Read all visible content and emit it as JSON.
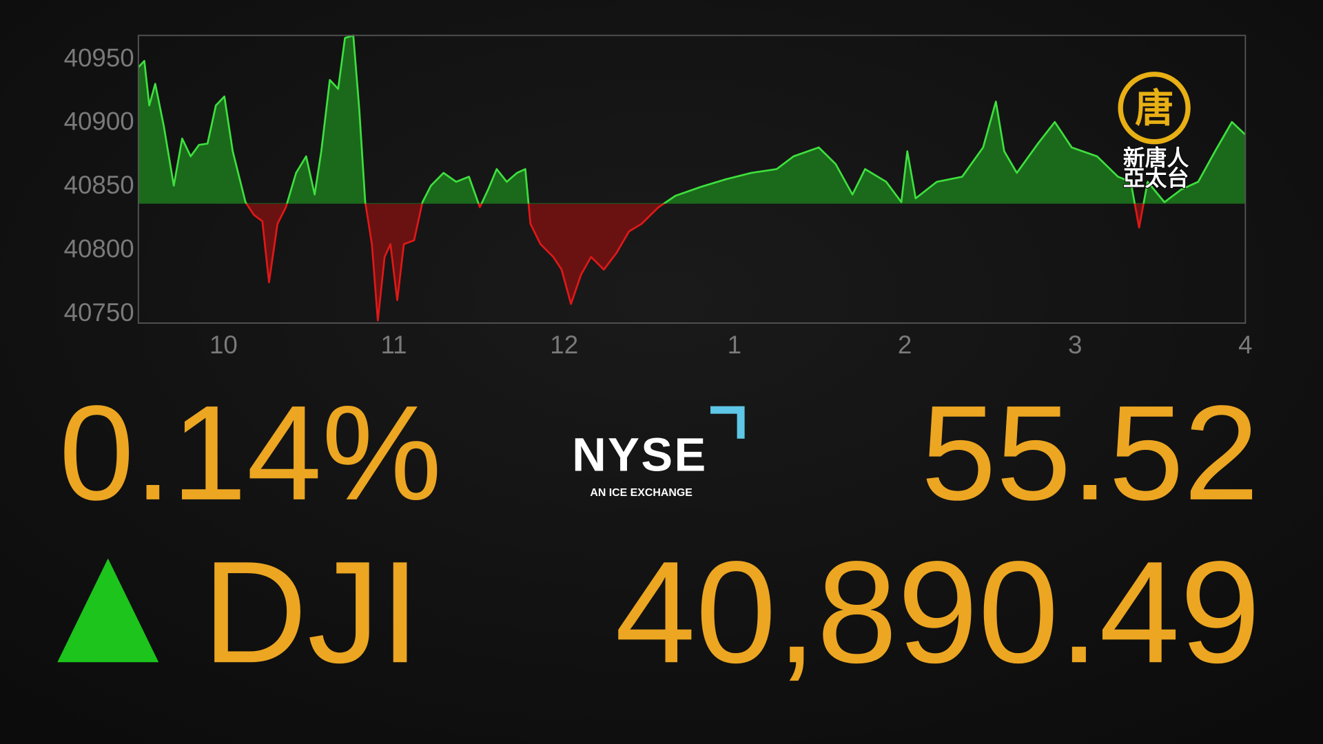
{
  "chart_data": {
    "type": "area",
    "x": [
      9.5,
      9.535,
      9.564,
      9.599,
      9.649,
      9.708,
      9.757,
      9.807,
      9.856,
      9.906,
      9.955,
      10.005,
      10.054,
      10.129,
      10.178,
      10.228,
      10.267,
      10.317,
      10.366,
      10.426,
      10.485,
      10.535,
      10.574,
      10.624,
      10.673,
      10.713,
      10.762,
      10.797,
      10.832,
      10.871,
      10.906,
      10.946,
      10.98,
      11.02,
      11.059,
      11.119,
      11.168,
      11.218,
      11.292,
      11.366,
      11.441,
      11.505,
      11.554,
      11.604,
      11.663,
      11.723,
      11.772,
      11.802,
      11.861,
      11.936,
      11.985,
      12.04,
      12.099,
      12.158,
      12.233,
      12.307,
      12.381,
      12.455,
      12.554,
      12.653,
      12.802,
      12.95,
      13.099,
      13.248,
      13.347,
      13.495,
      13.594,
      13.693,
      13.767,
      13.891,
      13.98,
      14.015,
      14.064,
      14.188,
      14.337,
      14.46,
      14.535,
      14.584,
      14.658,
      14.782,
      14.881,
      14.98,
      15.129,
      15.252,
      15.327,
      15.376,
      15.426,
      15.525,
      15.624,
      15.723,
      15.822,
      15.921,
      16.0
    ],
    "values": [
      40942,
      40947,
      40912,
      40929,
      40896,
      40849,
      40886,
      40872,
      40881,
      40882,
      40912,
      40919,
      40876,
      40836,
      40826,
      40821,
      40773,
      40819,
      40832,
      40859,
      40872,
      40842,
      40876,
      40932,
      40925,
      40965,
      40967,
      40909,
      40836,
      40803,
      40743,
      40793,
      40803,
      40759,
      40803,
      40806,
      40836,
      40849,
      40859,
      40852,
      40856,
      40832,
      40846,
      40862,
      40852,
      40859,
      40862,
      40819,
      40803,
      40793,
      40783,
      40756,
      40779,
      40793,
      40783,
      40796,
      40813,
      40819,
      40832,
      40841,
      40848,
      40854,
      40859,
      40862,
      40872,
      40879,
      40866,
      40842,
      40862,
      40852,
      40836,
      40876,
      40839,
      40852,
      40856,
      40879,
      40915,
      40876,
      40859,
      40882,
      40899,
      40879,
      40872,
      40856,
      40852,
      40816,
      40852,
      40836,
      40846,
      40852,
      40876,
      40899,
      40889
    ],
    "baseline": 40835,
    "up_color": "#3ee03e",
    "down_color": "#e01818",
    "up_fill": "#1b6a1b",
    "down_fill": "#6a1212",
    "xlim": [
      9.5,
      16
    ],
    "ylim": [
      40741,
      40967
    ],
    "xticks": [
      10,
      11,
      12,
      {
        "value": 13,
        "label": "1"
      },
      {
        "value": 14,
        "label": "2"
      },
      {
        "value": 15,
        "label": "3"
      },
      {
        "value": 16,
        "label": "4"
      }
    ],
    "yticks": [
      40750,
      40800,
      40850,
      40900,
      40950
    ]
  },
  "quote": {
    "change_percent": "0.14%",
    "change": "55.52",
    "symbol": "DJI",
    "price": "40,890.49"
  },
  "logos": {
    "exchange": "NYSE",
    "exchange_tagline": "AN ICE EXCHANGE",
    "channel_emblem": "唐",
    "channel_line1": "新唐人",
    "channel_line2": "亞太台"
  }
}
